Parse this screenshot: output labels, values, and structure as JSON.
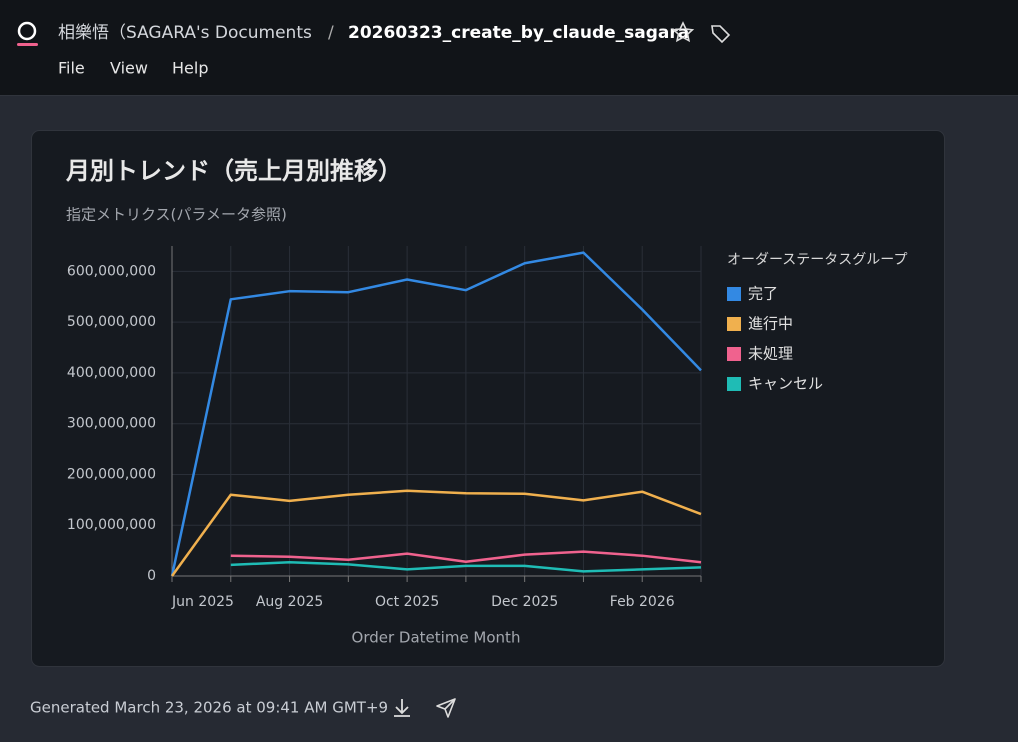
{
  "header": {
    "workspace": "相樂悟（SAGARA's Documents",
    "separator": "/",
    "document": "20260323_create_by_claude_sagara"
  },
  "menu": [
    "File",
    "View",
    "Help"
  ],
  "chart_data": {
    "type": "line",
    "title": "月別トレンド（売上月別推移）",
    "subtitle": "指定メトリクス(パラメータ参照)",
    "x_label": "Order Datetime Month",
    "legend_title": "オーダーステータスグループ",
    "legend": "right",
    "grid": true,
    "categories": [
      "Jun 2025",
      null,
      "Aug 2025",
      null,
      "Oct 2025",
      null,
      "Dec 2025",
      null,
      "Feb 2026",
      null
    ],
    "ylim": [
      0,
      650000000
    ],
    "yticks": [
      0,
      {
        "value": 100000000,
        "label": "100,000,000"
      },
      {
        "value": 200000000,
        "label": "200,000,000"
      },
      {
        "value": 300000000,
        "label": "300,000,000"
      },
      {
        "value": 400000000,
        "label": "400,000,000"
      },
      {
        "value": 500000000,
        "label": "500,000,000"
      },
      {
        "value": 600000000,
        "label": "600,000,000"
      }
    ],
    "series": [
      {
        "name": "完了",
        "color": "#3389e3",
        "values": [
          0,
          545000000,
          561000000,
          559000000,
          584000000,
          563000000,
          616000000,
          637000000,
          525000000,
          405000000
        ]
      },
      {
        "name": "進行中",
        "color": "#f0b04e",
        "values": [
          0,
          160000000,
          148000000,
          160000000,
          168000000,
          163000000,
          162000000,
          149000000,
          166000000,
          122000000
        ]
      },
      {
        "name": "未処理",
        "color": "#f0628e",
        "values": [
          null,
          40000000,
          38000000,
          32000000,
          44000000,
          28000000,
          42000000,
          48000000,
          40000000,
          27000000
        ]
      },
      {
        "name": "キャンセル",
        "color": "#1fbcb5",
        "values": [
          null,
          22000000,
          27000000,
          23000000,
          13000000,
          20000000,
          20000000,
          9000000,
          13000000,
          17000000
        ]
      }
    ]
  },
  "footer": {
    "generated": "Generated March 23, 2026 at 09:41 AM GMT+9"
  }
}
